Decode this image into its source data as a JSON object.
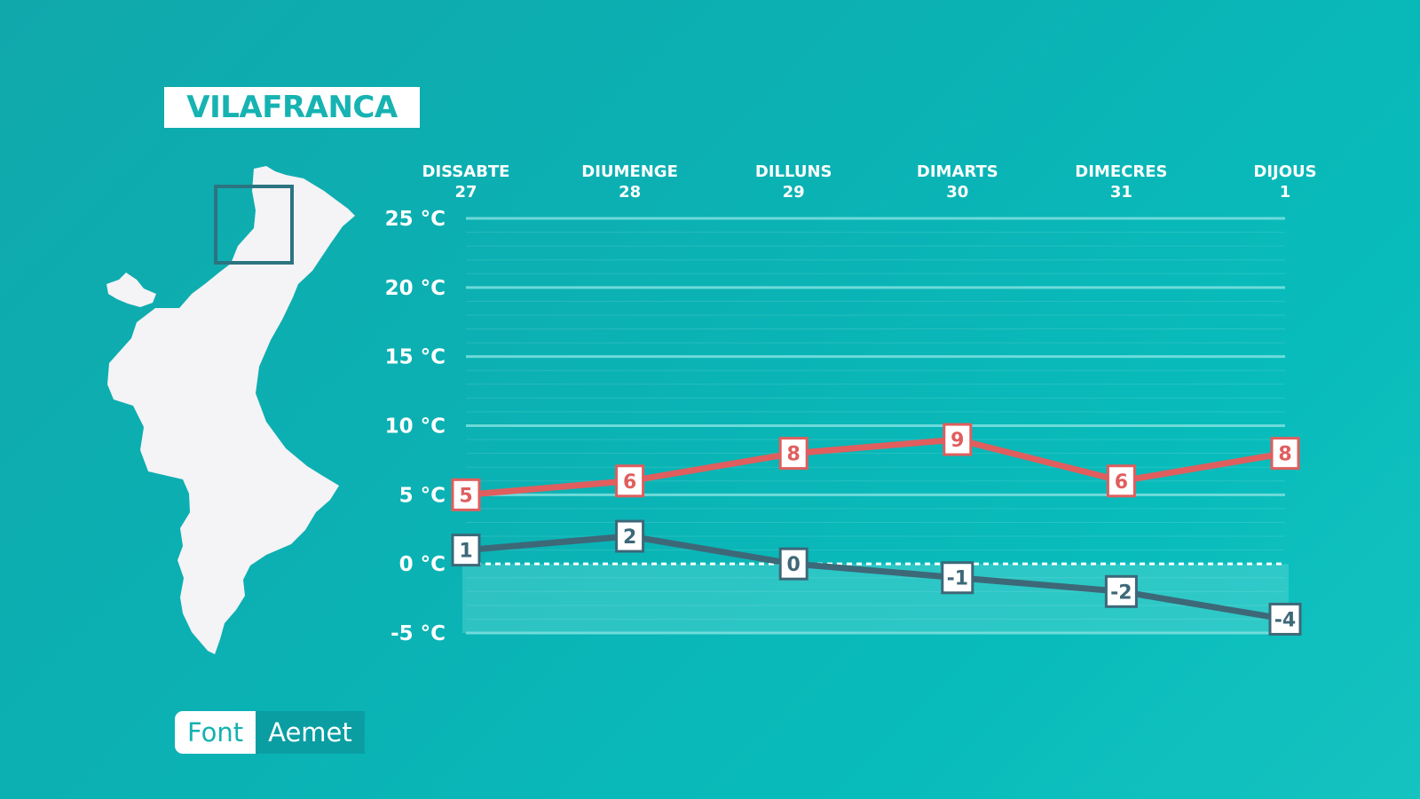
{
  "location": "VILAFRANCA",
  "source": {
    "label": "Font",
    "value": "Aemet"
  },
  "colors": {
    "max": "#e05e5e",
    "min": "#3d6878",
    "accent": "#16b3b2"
  },
  "chart_data": {
    "type": "line",
    "categories": [
      {
        "day": "DISSABTE",
        "date": "27"
      },
      {
        "day": "DIUMENGE",
        "date": "28"
      },
      {
        "day": "DILLUNS",
        "date": "29"
      },
      {
        "day": "DIMARTS",
        "date": "30"
      },
      {
        "day": "DIMECRES",
        "date": "31"
      },
      {
        "day": "DIJOUS",
        "date": "1"
      }
    ],
    "series": [
      {
        "key": "max",
        "values": [
          5,
          6,
          8,
          9,
          6,
          8
        ]
      },
      {
        "key": "min",
        "values": [
          1,
          2,
          0,
          -1,
          -2,
          -4
        ]
      }
    ],
    "yticks": [
      "25 °C",
      "20 °C",
      "15 °C",
      "10 °C",
      "5 °C",
      "0 °C",
      "-5 °C"
    ],
    "ytick_values": [
      25,
      20,
      15,
      10,
      5,
      0,
      -5
    ],
    "ylim": [
      -5,
      25
    ],
    "unit": "°C",
    "grid": true,
    "zero_line": "dashed"
  }
}
